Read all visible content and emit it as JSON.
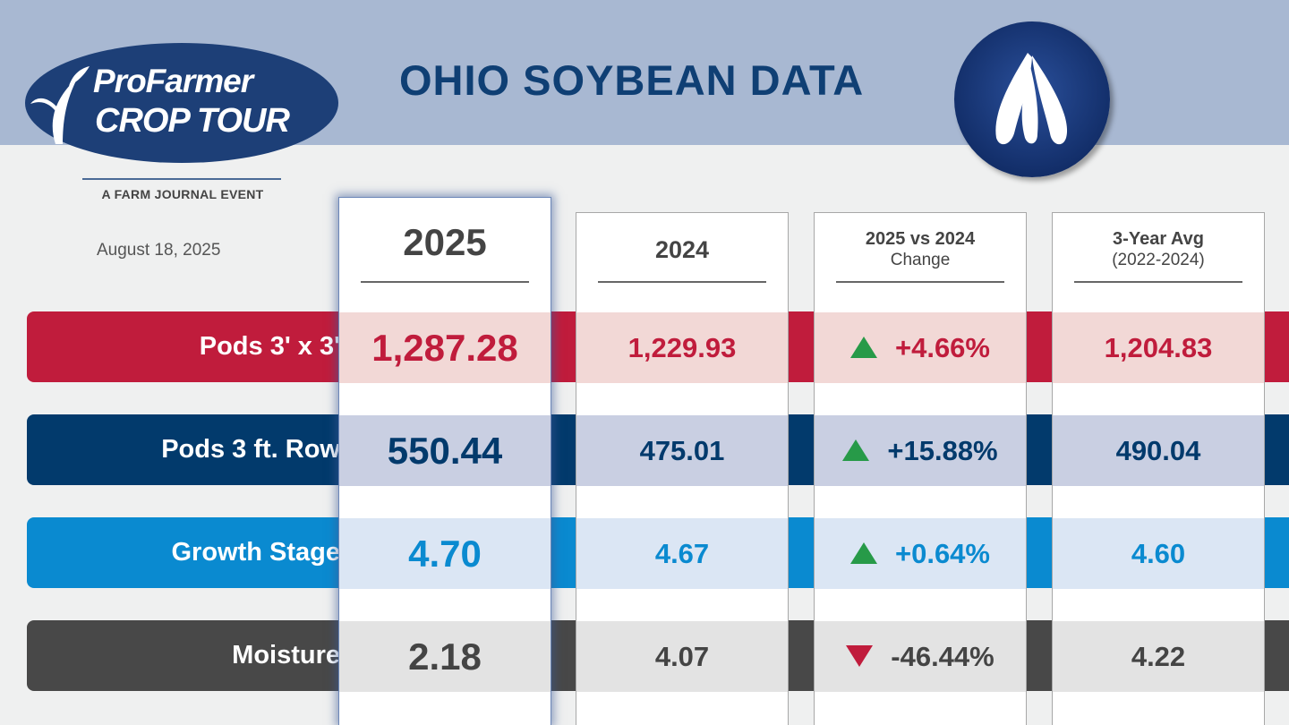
{
  "header": {
    "logo_line1": "ProFarmer",
    "logo_line2": "CROP TOUR",
    "tagline": "A FARM JOURNAL EVENT",
    "title": "OHIO SOYBEAN DATA",
    "date": "August 18, 2025",
    "icon": "soybean-pod-icon"
  },
  "columns": [
    {
      "title": "2025",
      "subtitle": ""
    },
    {
      "title": "2024",
      "subtitle": ""
    },
    {
      "title": "2025 vs 2024",
      "subtitle": "Change"
    },
    {
      "title": "3-Year Avg",
      "subtitle": "(2022-2024)"
    }
  ],
  "colors": {
    "header_bg": "#a8b8d2",
    "title": "#0f3f74",
    "up": "#279a48",
    "down": "#c01c3c"
  },
  "chart_data": {
    "type": "table",
    "title": "OHIO SOYBEAN DATA",
    "columns": [
      "2025",
      "2024",
      "2025 vs 2024 Change",
      "3-Year Avg (2022-2024)"
    ],
    "rows": [
      {
        "label": "Pods 3' x 3'",
        "values": [
          "1,287.28",
          "1,229.93",
          "+4.66%",
          "1,204.83"
        ],
        "direction": "up",
        "color": "#c01c3c",
        "tint": "#f2d8d6"
      },
      {
        "label": "Pods 3 ft. Row",
        "values": [
          "550.44",
          "475.01",
          "+15.88%",
          "490.04"
        ],
        "direction": "up",
        "color": "#023a6c",
        "tint": "#c9cfe2"
      },
      {
        "label": "Growth Stage",
        "values": [
          "4.70",
          "4.67",
          "+0.64%",
          "4.60"
        ],
        "direction": "up",
        "color": "#0a8ad0",
        "tint": "#dbe6f4"
      },
      {
        "label": "Moisture",
        "values": [
          "2.18",
          "4.07",
          "-46.44%",
          "4.22"
        ],
        "direction": "down",
        "color": "#484848",
        "tint": "#e3e3e3"
      }
    ]
  }
}
